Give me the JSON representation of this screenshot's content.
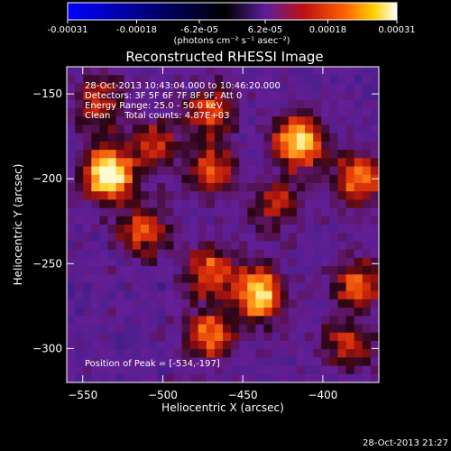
{
  "colorbar": {
    "tick_labels": [
      "-0.00031",
      "-0.00018",
      "-6.2e-05",
      "6.2e-05",
      "0.00018",
      "0.00031"
    ],
    "tick_values": [
      -0.00031,
      -0.00018,
      -6.2e-05,
      6.2e-05,
      0.00018,
      0.00031
    ],
    "range": [
      -0.00031,
      0.00031
    ],
    "unit_label": "(photons cm⁻² s⁻¹ asec⁻²)",
    "colors": [
      "#0000ff",
      "#000000",
      "#5a1e9c",
      "#c01010",
      "#ff6000",
      "#ffd000",
      "#ffffff"
    ]
  },
  "chart_data": {
    "type": "heatmap",
    "title": "Reconstructed RHESSI Image",
    "xlabel": "Heliocentric X (arcsec)",
    "ylabel": "Heliocentric Y (arcsec)",
    "xlim": [
      -560,
      -365
    ],
    "ylim": [
      -320,
      -134
    ],
    "x_ticks": [
      -550,
      -500,
      -450,
      -400
    ],
    "y_ticks": [
      -150,
      -200,
      -250,
      -300
    ],
    "x_tick_labels": [
      "−550",
      "−500",
      "−450",
      "−400"
    ],
    "y_tick_labels": [
      "−150",
      "−200",
      "−250",
      "−300"
    ],
    "grid": false,
    "info_lines": [
      "28-Oct-2013 10:43:04.000 to 10:46:20.000",
      "Detectors: 3F 5F 6F 7F 8F 9F, Att 0",
      "Energy Range: 25.0 - 50.0 keV",
      "Clean     Total counts: 4.87E+03"
    ],
    "peak_label": "Position of Peak = [-534,-197]",
    "peak": [
      -534,
      -197
    ],
    "bright_regions": [
      {
        "x": -534,
        "y": -197,
        "level": 1.0
      },
      {
        "x": -512,
        "y": -230,
        "level": 0.55
      },
      {
        "x": -470,
        "y": -160,
        "level": 0.5
      },
      {
        "x": -470,
        "y": -195,
        "level": 0.5
      },
      {
        "x": -415,
        "y": -178,
        "level": 0.85
      },
      {
        "x": -440,
        "y": -268,
        "level": 0.85
      },
      {
        "x": -470,
        "y": -255,
        "level": 0.6
      },
      {
        "x": -470,
        "y": -292,
        "level": 0.6
      },
      {
        "x": -378,
        "y": -200,
        "level": 0.6
      },
      {
        "x": -378,
        "y": -262,
        "level": 0.55
      },
      {
        "x": -385,
        "y": -298,
        "level": 0.45
      },
      {
        "x": -540,
        "y": -155,
        "level": 0.45
      },
      {
        "x": -505,
        "y": -180,
        "level": 0.45
      },
      {
        "x": -430,
        "y": -215,
        "level": 0.4
      }
    ]
  },
  "timestamp": "28-Oct-2013 21:27"
}
